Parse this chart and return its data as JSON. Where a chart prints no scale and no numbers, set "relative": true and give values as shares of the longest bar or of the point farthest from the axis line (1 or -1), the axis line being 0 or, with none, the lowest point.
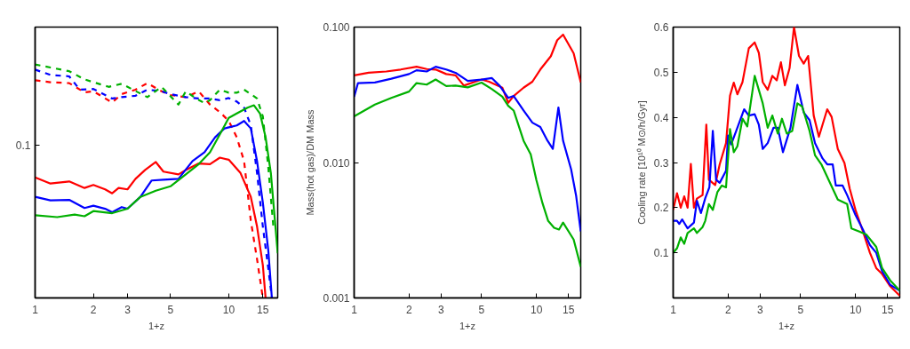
{
  "chart_data": [
    {
      "type": "line",
      "xlabel": "1+z",
      "relative": true,
      "log": "x",
      "xlim": [
        1,
        17.9
      ],
      "xticks": [
        1,
        2,
        3,
        5,
        10,
        15
      ],
      "grid": false,
      "annotations": [
        "0.1"
      ],
      "series": [
        {
          "color": "#ff0000",
          "line_style": "solid",
          "x": [
            1,
            1.2,
            1.5,
            1.8,
            2,
            2.3,
            2.5,
            2.7,
            3,
            3.3,
            3.7,
            4.2,
            4.6,
            5.5,
            6,
            7,
            8,
            9,
            10,
            11.5,
            13,
            14,
            15,
            15.5
          ],
          "values": [
            0.516,
            0.49,
            0.499,
            0.471,
            0.484,
            0.465,
            0.448,
            0.471,
            0.465,
            0.51,
            0.548,
            0.582,
            0.541,
            0.529,
            0.548,
            0.576,
            0.573,
            0.601,
            0.592,
            0.535,
            0.433,
            0.306,
            0.14,
            0
          ]
        },
        {
          "color": "#ff0000",
          "line_style": "dashed",
          "x": [
            1,
            1.2,
            1.5,
            1.8,
            2,
            2.5,
            2.8,
            3.3,
            3.8,
            4.5,
            5,
            6,
            7,
            8,
            9,
            10,
            11,
            12,
            13,
            14,
            15
          ],
          "values": [
            0.932,
            0.924,
            0.92,
            0.88,
            0.885,
            0.837,
            0.873,
            0.892,
            0.92,
            0.885,
            0.869,
            0.86,
            0.885,
            0.828,
            0.796,
            0.758,
            0.688,
            0.586,
            0.331,
            0.166,
            0
          ]
        },
        {
          "color": "#0000ff",
          "line_style": "solid",
          "x": [
            1,
            1.2,
            1.5,
            1.8,
            2,
            2.3,
            2.5,
            2.8,
            3,
            3.5,
            4,
            4.6,
            5.5,
            6.5,
            7.5,
            8.5,
            9.5,
            11,
            12,
            13,
            14,
            15,
            16,
            16.7
          ],
          "values": [
            0.433,
            0.418,
            0.42,
            0.385,
            0.395,
            0.382,
            0.367,
            0.389,
            0.382,
            0.433,
            0.503,
            0.506,
            0.51,
            0.586,
            0.624,
            0.688,
            0.726,
            0.739,
            0.758,
            0.726,
            0.586,
            0.408,
            0.204,
            0
          ]
        },
        {
          "color": "#0000ff",
          "line_style": "dashed",
          "x": [
            1,
            1.2,
            1.5,
            1.7,
            2,
            2.5,
            2.8,
            3.3,
            3.8,
            4.5,
            5,
            6,
            7,
            8,
            9,
            10,
            11,
            12,
            13,
            14,
            15,
            16,
            16.7
          ],
          "values": [
            0.978,
            0.955,
            0.949,
            0.892,
            0.895,
            0.854,
            0.86,
            0.866,
            0.892,
            0.885,
            0.873,
            0.86,
            0.854,
            0.854,
            0.847,
            0.856,
            0.841,
            0.815,
            0.739,
            0.535,
            0.306,
            0.127,
            0
          ]
        },
        {
          "color": "#00b000",
          "line_style": "solid",
          "x": [
            1,
            1.3,
            1.6,
            1.8,
            2,
            2.5,
            3,
            3.5,
            4.2,
            5,
            6,
            7,
            8,
            9,
            10,
            11,
            12.5,
            13.5,
            14.5,
            15.5,
            16.5,
            17.9
          ],
          "values": [
            0.354,
            0.346,
            0.357,
            0.35,
            0.372,
            0.363,
            0.382,
            0.433,
            0.459,
            0.478,
            0.529,
            0.573,
            0.624,
            0.701,
            0.771,
            0.79,
            0.815,
            0.825,
            0.79,
            0.688,
            0.535,
            0.191
          ]
        },
        {
          "color": "#00b000",
          "line_style": "dashed",
          "x": [
            1,
            1.2,
            1.5,
            1.8,
            2,
            2.4,
            2.8,
            3.2,
            3.8,
            4.5,
            5.5,
            6,
            6.8,
            7.5,
            8,
            9,
            10,
            11,
            12,
            13,
            14,
            15,
            16,
            17
          ],
          "values": [
            1.0,
            0.987,
            0.971,
            0.936,
            0.924,
            0.904,
            0.917,
            0.892,
            0.86,
            0.904,
            0.828,
            0.885,
            0.854,
            0.834,
            0.847,
            0.892,
            0.879,
            0.879,
            0.892,
            0.873,
            0.854,
            0.777,
            0.561,
            0.306
          ]
        }
      ]
    },
    {
      "type": "line",
      "xlabel": "1+z",
      "ylabel": "Mass(hot gas)/DM Mass",
      "log": "xy",
      "xlim": [
        1,
        17.5
      ],
      "xticks": [
        1,
        2,
        3,
        5,
        10,
        15
      ],
      "ylim": [
        0.001,
        0.1
      ],
      "yticks": [
        {
          "value": 0.001,
          "label": "0.001"
        },
        {
          "value": 0.01,
          "label": "0.010"
        },
        {
          "value": 0.1,
          "label": "0.100"
        }
      ],
      "grid": false,
      "series": [
        {
          "color": "#ff0000",
          "x": [
            1,
            1.2,
            1.5,
            1.8,
            2.2,
            2.5,
            2.8,
            3.2,
            3.6,
            4,
            5,
            5.5,
            6.5,
            7,
            7.5,
            8.5,
            9.5,
            10.5,
            12,
            13,
            14,
            16,
            17.5
          ],
          "values": [
            0.044,
            0.046,
            0.047,
            0.0486,
            0.051,
            0.049,
            0.0486,
            0.045,
            0.044,
            0.037,
            0.041,
            0.0395,
            0.0357,
            0.0276,
            0.031,
            0.0357,
            0.0395,
            0.0486,
            0.061,
            0.08,
            0.088,
            0.064,
            0.039
          ]
        },
        {
          "color": "#0000ff",
          "x": [
            1,
            1.05,
            1.3,
            1.6,
            2,
            2.2,
            2.5,
            2.8,
            3.2,
            3.6,
            4.2,
            5,
            5.7,
            6.3,
            7,
            7.5,
            8.5,
            9.5,
            10.5,
            11.5,
            12.3,
            13.2,
            14,
            15.5,
            16.5,
            17.5
          ],
          "values": [
            0.0306,
            0.0386,
            0.039,
            0.0416,
            0.045,
            0.048,
            0.047,
            0.051,
            0.0486,
            0.046,
            0.04,
            0.041,
            0.042,
            0.0367,
            0.03,
            0.031,
            0.0242,
            0.0197,
            0.0183,
            0.0145,
            0.0126,
            0.0255,
            0.0145,
            0.0089,
            0.0057,
            0.0031
          ]
        },
        {
          "color": "#00b000",
          "x": [
            1,
            1.3,
            1.6,
            2,
            2.2,
            2.5,
            2.8,
            3.2,
            3.6,
            4.2,
            5,
            5.7,
            6.5,
            7,
            7.5,
            8.5,
            9.3,
            10,
            10.8,
            11.6,
            12.5,
            13.3,
            14,
            16,
            17.5
          ],
          "values": [
            0.0219,
            0.0268,
            0.03,
            0.0334,
            0.0386,
            0.0376,
            0.041,
            0.0367,
            0.037,
            0.0359,
            0.0389,
            0.0348,
            0.0306,
            0.0262,
            0.0242,
            0.0145,
            0.0115,
            0.0074,
            0.005,
            0.0037,
            0.0033,
            0.0032,
            0.0036,
            0.0027,
            0.0017
          ]
        }
      ]
    },
    {
      "type": "line",
      "xlabel": "1+z",
      "ylabel": "Cooling rate [10¹⁰ M⊙/h/Gyr]",
      "log": "x",
      "xlim": [
        1,
        17.5
      ],
      "xticks": [
        1,
        2,
        3,
        5,
        10,
        15
      ],
      "ylim": [
        0,
        0.6
      ],
      "yticks": [
        0.1,
        0.2,
        0.3,
        0.4,
        0.5,
        0.6
      ],
      "grid": false,
      "series": [
        {
          "color": "#ff0000",
          "x": [
            1,
            1.05,
            1.1,
            1.15,
            1.2,
            1.25,
            1.3,
            1.35,
            1.45,
            1.52,
            1.57,
            1.7,
            1.8,
            1.95,
            2.05,
            2.15,
            2.25,
            2.4,
            2.6,
            2.8,
            2.95,
            3.1,
            3.3,
            3.5,
            3.7,
            3.9,
            4.1,
            4.35,
            4.6,
            4.9,
            5.2,
            5.5,
            5.9,
            6.3,
            7,
            7.4,
            8,
            8.7,
            9.3,
            10,
            11,
            12,
            13,
            14,
            15.5,
            17.5
          ],
          "values": [
            0.195,
            0.232,
            0.2,
            0.225,
            0.2,
            0.297,
            0.2,
            0.22,
            0.228,
            0.384,
            0.262,
            0.25,
            0.296,
            0.343,
            0.448,
            0.477,
            0.451,
            0.478,
            0.553,
            0.566,
            0.543,
            0.478,
            0.461,
            0.492,
            0.482,
            0.522,
            0.471,
            0.509,
            0.6,
            0.536,
            0.519,
            0.536,
            0.404,
            0.357,
            0.418,
            0.401,
            0.33,
            0.299,
            0.242,
            0.195,
            0.147,
            0.1,
            0.066,
            0.053,
            0.026,
            0.005
          ]
        },
        {
          "color": "#0000ff",
          "x": [
            1,
            1.05,
            1.08,
            1.12,
            1.2,
            1.3,
            1.35,
            1.42,
            1.5,
            1.58,
            1.65,
            1.72,
            1.8,
            1.95,
            2,
            2.08,
            2.25,
            2.45,
            2.6,
            2.8,
            2.95,
            3.1,
            3.3,
            3.55,
            3.75,
            4,
            4.4,
            4.8,
            5.2,
            5.6,
            6,
            6.6,
            7,
            7.5,
            7.8,
            8.5,
            9,
            10,
            11,
            12,
            13,
            14,
            15.5,
            17.5
          ],
          "values": [
            0.171,
            0.171,
            0.164,
            0.174,
            0.154,
            0.167,
            0.215,
            0.188,
            0.221,
            0.245,
            0.37,
            0.262,
            0.255,
            0.282,
            0.36,
            0.34,
            0.377,
            0.418,
            0.404,
            0.407,
            0.384,
            0.33,
            0.343,
            0.377,
            0.377,
            0.323,
            0.377,
            0.472,
            0.411,
            0.394,
            0.343,
            0.309,
            0.296,
            0.296,
            0.249,
            0.249,
            0.228,
            0.184,
            0.151,
            0.117,
            0.1,
            0.059,
            0.029,
            0.016
          ]
        },
        {
          "color": "#00b000",
          "x": [
            1,
            1.05,
            1.1,
            1.15,
            1.2,
            1.3,
            1.35,
            1.45,
            1.5,
            1.57,
            1.65,
            1.75,
            1.85,
            1.95,
            2.05,
            2.15,
            2.25,
            2.4,
            2.55,
            2.8,
            3.1,
            3.3,
            3.5,
            3.75,
            3.95,
            4.2,
            4.5,
            4.8,
            5.1,
            5.6,
            6,
            6.5,
            8,
            9,
            9.5,
            10.5,
            11.5,
            13,
            14,
            15.5,
            17.5
          ],
          "values": [
            0.1,
            0.11,
            0.134,
            0.12,
            0.144,
            0.154,
            0.144,
            0.157,
            0.171,
            0.208,
            0.195,
            0.235,
            0.249,
            0.245,
            0.374,
            0.323,
            0.336,
            0.397,
            0.38,
            0.492,
            0.431,
            0.377,
            0.404,
            0.364,
            0.397,
            0.364,
            0.37,
            0.431,
            0.424,
            0.37,
            0.316,
            0.296,
            0.218,
            0.208,
            0.154,
            0.147,
            0.14,
            0.113,
            0.066,
            0.039,
            0.016
          ]
        }
      ]
    }
  ]
}
